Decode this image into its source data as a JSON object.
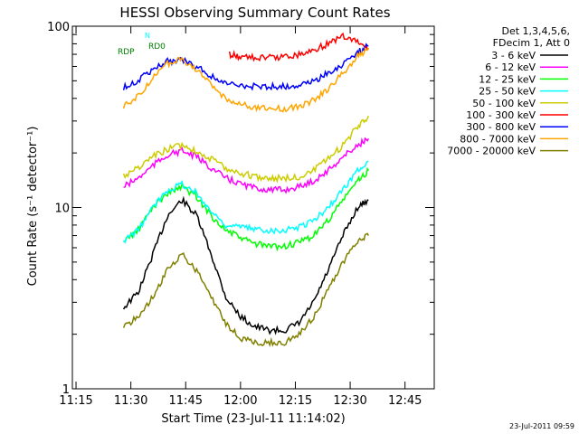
{
  "chart_data": {
    "type": "line",
    "title": "HESSI Observing Summary Count Rates",
    "xlabel": "Start Time (23-Jul-11 11:14:02)",
    "ylabel": "Count Rate (s⁻¹ detector⁻¹)",
    "y_scale": "log",
    "ylim": [
      1,
      100
    ],
    "xlim": [
      "11:14",
      "12:53"
    ],
    "x_ticks": [
      "11:15",
      "11:30",
      "11:45",
      "12:00",
      "12:15",
      "12:30",
      "12:45"
    ],
    "y_ticks": [
      "1",
      "10",
      "100"
    ],
    "legend_position": "right",
    "legend_header": [
      "Det 1,3,4,5,6,",
      "FDecim 1, Att 0"
    ],
    "series": [
      {
        "name": "3 - 6 keV",
        "color": "#000000",
        "x": [
          "11:28",
          "11:32",
          "11:36",
          "11:40",
          "11:44",
          "11:48",
          "11:52",
          "11:56",
          "12:00",
          "12:04",
          "12:08",
          "12:12",
          "12:16",
          "12:20",
          "12:24",
          "12:28",
          "12:32",
          "12:35"
        ],
        "y": [
          2.8,
          3.4,
          5.5,
          9,
          11,
          9,
          5.5,
          3.2,
          2.5,
          2.2,
          2.1,
          2.1,
          2.3,
          3,
          4.5,
          7,
          10,
          11
        ]
      },
      {
        "name": "6 - 12 keV",
        "color": "#ff00ff",
        "x": [
          "11:28",
          "11:32",
          "11:36",
          "11:40",
          "11:44",
          "11:48",
          "11:52",
          "11:56",
          "12:00",
          "12:04",
          "12:08",
          "12:12",
          "12:16",
          "12:20",
          "12:24",
          "12:28",
          "12:32",
          "12:35"
        ],
        "y": [
          13,
          14.5,
          17,
          19.5,
          20.5,
          19,
          16.5,
          14.5,
          13.5,
          12.8,
          12.5,
          12.5,
          13,
          14,
          16,
          19,
          22,
          24
        ]
      },
      {
        "name": "12 - 25 keV",
        "color": "#00ff00",
        "x": [
          "11:28",
          "11:32",
          "11:36",
          "11:40",
          "11:44",
          "11:48",
          "11:52",
          "11:56",
          "12:00",
          "12:04",
          "12:08",
          "12:12",
          "12:16",
          "12:20",
          "12:24",
          "12:28",
          "12:32",
          "12:35"
        ],
        "y": [
          6.5,
          7.5,
          10,
          12,
          13,
          11.5,
          9,
          7.5,
          6.8,
          6.3,
          6.1,
          6.1,
          6.4,
          7,
          8.5,
          11,
          14,
          16
        ]
      },
      {
        "name": "25 - 50 keV",
        "color": "#00ffff",
        "x": [
          "11:28",
          "11:32",
          "11:36",
          "11:40",
          "11:44",
          "11:48",
          "11:52",
          "11:56",
          "12:00",
          "12:04",
          "12:08",
          "12:12",
          "12:16",
          "12:20",
          "12:24",
          "12:28",
          "12:32",
          "12:35"
        ],
        "y": [
          6.5,
          7.5,
          10,
          12.5,
          13.5,
          12,
          9.5,
          8,
          7.8,
          7.6,
          7.5,
          7.5,
          7.8,
          8.5,
          10,
          12.5,
          16,
          18
        ]
      },
      {
        "name": "50 - 100 keV",
        "color": "#cccc00",
        "x": [
          "11:28",
          "11:32",
          "11:36",
          "11:40",
          "11:44",
          "11:48",
          "11:52",
          "11:56",
          "12:00",
          "12:04",
          "12:08",
          "12:12",
          "12:16",
          "12:20",
          "12:24",
          "12:28",
          "12:32",
          "12:35"
        ],
        "y": [
          15,
          16.5,
          19,
          21,
          22,
          20.5,
          18.5,
          16.5,
          15.5,
          14.8,
          14.5,
          14.5,
          14.8,
          16,
          18.5,
          22,
          28,
          32
        ]
      },
      {
        "name": "100 - 300 keV",
        "color": "#ff0000",
        "x": [
          "11:57",
          "12:00",
          "12:04",
          "12:08",
          "12:12",
          "12:16",
          "12:20",
          "12:24",
          "12:28",
          "12:32",
          "12:35"
        ],
        "y": [
          70,
          68,
          67,
          67,
          68,
          70,
          74,
          80,
          88,
          82,
          75
        ]
      },
      {
        "name": "300 - 800 keV",
        "color": "#0000ff",
        "x": [
          "11:28",
          "11:32",
          "11:36",
          "11:40",
          "11:44",
          "11:48",
          "11:52",
          "11:56",
          "12:00",
          "12:04",
          "12:08",
          "12:12",
          "12:16",
          "12:20",
          "12:24",
          "12:28",
          "12:32",
          "12:35"
        ],
        "y": [
          46,
          50,
          58,
          64,
          65,
          60,
          53,
          48,
          47,
          46.5,
          46.5,
          46.5,
          47.5,
          50,
          55,
          62,
          72,
          78
        ]
      },
      {
        "name": "800 - 7000 keV",
        "color": "#ffa500",
        "x": [
          "11:28",
          "11:32",
          "11:36",
          "11:40",
          "11:44",
          "11:48",
          "11:52",
          "11:56",
          "12:00",
          "12:04",
          "12:08",
          "12:12",
          "12:16",
          "12:20",
          "12:24",
          "12:28",
          "12:32",
          "12:35"
        ],
        "y": [
          36,
          41,
          52,
          62,
          66,
          58,
          47,
          40,
          37,
          35.5,
          35,
          35,
          36,
          39,
          45,
          55,
          68,
          76
        ]
      },
      {
        "name": "7000 - 20000 keV",
        "color": "#808000",
        "x": [
          "11:28",
          "11:32",
          "11:36",
          "11:40",
          "11:44",
          "11:48",
          "11:52",
          "11:56",
          "12:00",
          "12:04",
          "12:08",
          "12:12",
          "12:16",
          "12:20",
          "12:24",
          "12:28",
          "12:32",
          "12:35"
        ],
        "y": [
          2.2,
          2.5,
          3.2,
          4.5,
          5.5,
          4.5,
          3.2,
          2.3,
          1.9,
          1.8,
          1.8,
          1.8,
          2,
          2.5,
          3.5,
          5,
          6.5,
          7
        ]
      }
    ],
    "annotations": [
      {
        "text": "RD0",
        "color": "#008000"
      },
      {
        "text": "RDP",
        "color": "#008000"
      },
      {
        "text": "N",
        "color": "#00ffff"
      }
    ],
    "footer_timestamp": "23-Jul-2011 09:59"
  }
}
